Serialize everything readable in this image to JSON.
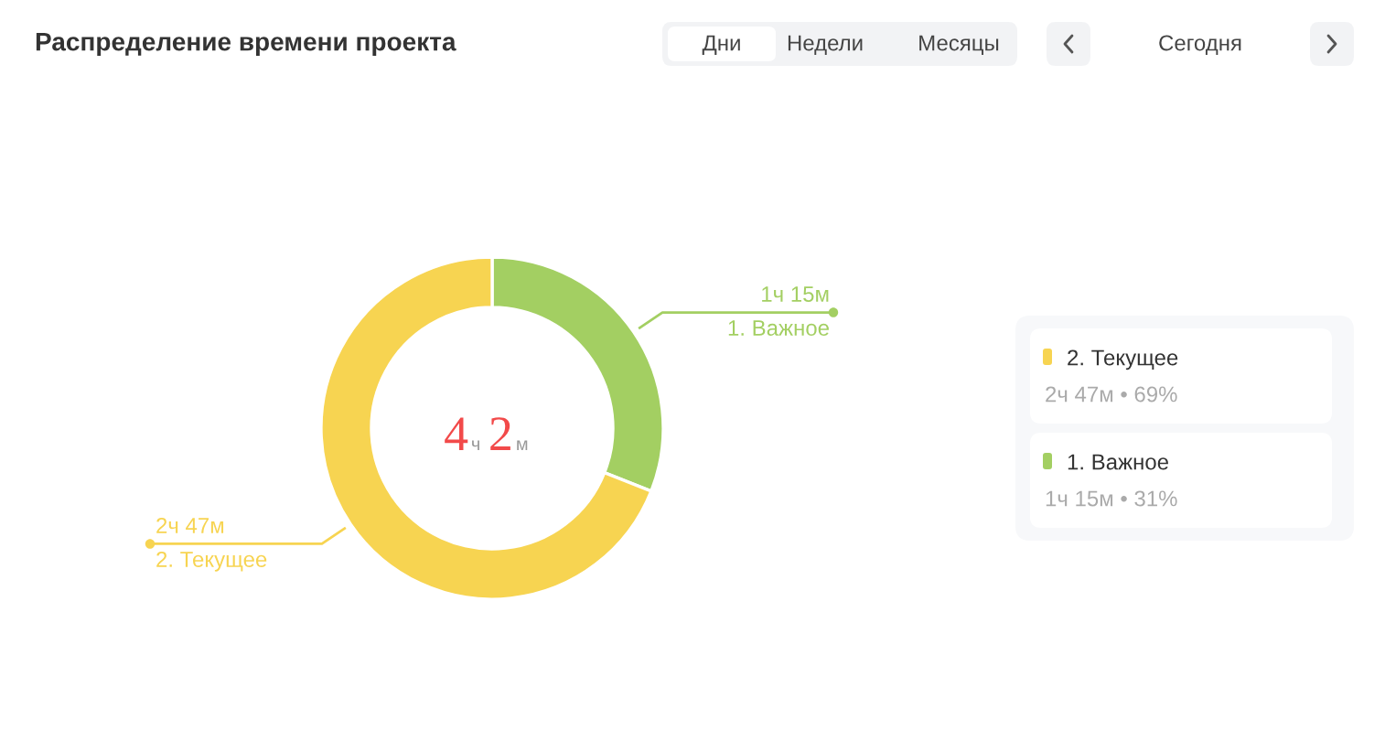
{
  "chart_data": {
    "type": "donut",
    "title": "Распределение времени проекта",
    "categories": [
      "1. Важное",
      "2. Текущее"
    ],
    "values": [
      31,
      69
    ],
    "colors": [
      "#a3cf62",
      "#f7d451"
    ],
    "legend": "right",
    "annotations": [
      "4ч 2м",
      "1ч 15м",
      "2ч 47м",
      "2ч 47м • 69%",
      "1ч 15м • 31%",
      "Дни",
      "Недели",
      "Месяцы",
      "Сегодня"
    ]
  }
}
